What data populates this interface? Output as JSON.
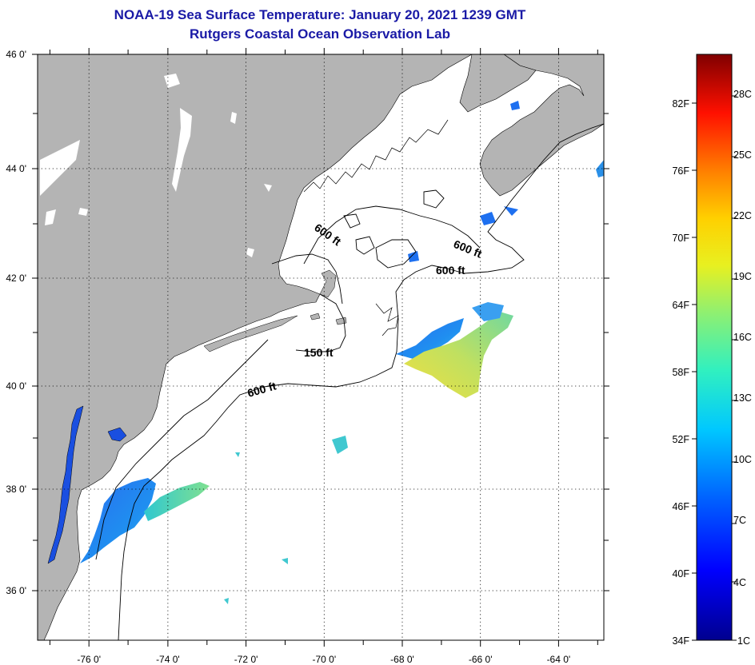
{
  "title": {
    "line1": "NOAA-19 Sea Surface Temperature:  January 20, 2021 1239 GMT",
    "line2": "Rutgers Coastal Ocean Observation Lab"
  },
  "map": {
    "lon_range": [
      -77,
      -62.5
    ],
    "lat_range": [
      35,
      46
    ],
    "lon_ticks": [
      {
        "value": -76,
        "label": "-76 0'"
      },
      {
        "value": -74,
        "label": "-74 0'"
      },
      {
        "value": -72,
        "label": "-72 0'"
      },
      {
        "value": -70,
        "label": "-70 0'"
      },
      {
        "value": -68,
        "label": "-68 0'"
      },
      {
        "value": -66,
        "label": "-66 0'"
      },
      {
        "value": -64,
        "label": "-64 0'"
      }
    ],
    "lat_ticks": [
      {
        "value": 46,
        "label": "46 0'"
      },
      {
        "value": 44,
        "label": "44 0'"
      },
      {
        "value": 42,
        "label": "42 0'"
      },
      {
        "value": 40,
        "label": "40 0'"
      },
      {
        "value": 38,
        "label": "38 0'"
      },
      {
        "value": 36,
        "label": "36 0'"
      }
    ],
    "contour_labels": [
      {
        "text": "600 ft",
        "lon": -70.2,
        "lat": 42.9
      },
      {
        "text": "600 ft",
        "lon": -66.2,
        "lat": 42.5
      },
      {
        "text": "600 ft",
        "lon": -66.3,
        "lat": 42.1
      },
      {
        "text": "150 ft",
        "lon": -70.0,
        "lat": 40.7
      },
      {
        "text": "600 ft",
        "lon": -71.4,
        "lat": 40.0
      }
    ],
    "colors": {
      "land": "#b4b4b4",
      "ocean": "#ffffff",
      "grid": "#000000"
    }
  },
  "colorbar": {
    "range_c": [
      1,
      31
    ],
    "fahrenheit_labels": [
      "34F",
      "40F",
      "46F",
      "52F",
      "58F",
      "64F",
      "70F",
      "76F",
      "82F"
    ],
    "celsius_labels": [
      "1C",
      "4C",
      "7C",
      "10C",
      "13C",
      "16C",
      "19C",
      "22C",
      "25C",
      "28C"
    ]
  }
}
